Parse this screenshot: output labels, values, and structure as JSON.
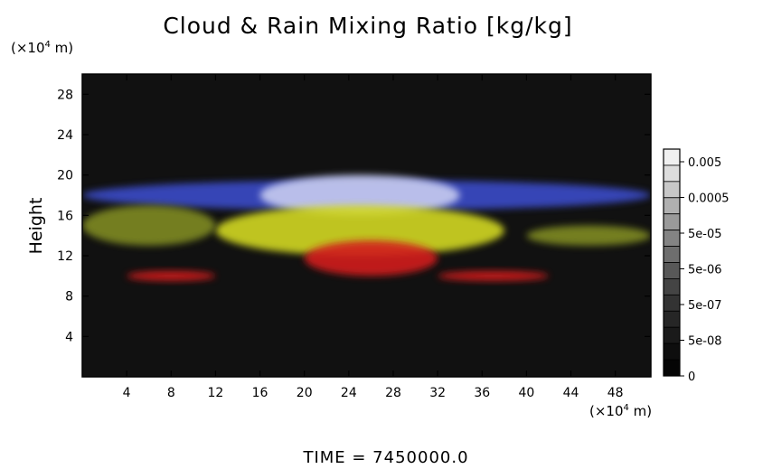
{
  "chart_data": {
    "type": "heatmap",
    "title": "Cloud & Rain Mixing Ratio [kg/kg]",
    "xlabel": "",
    "ylabel": "Height",
    "x_unit": {
      "prefix": "(×10",
      "exp": "4",
      "suffix": " m)"
    },
    "y_unit": {
      "prefix": "(×10",
      "exp": "4",
      "suffix": " m)"
    },
    "xlim": [
      0,
      51.2
    ],
    "ylim": [
      0,
      30
    ],
    "xticks": [
      4,
      8,
      12,
      16,
      20,
      24,
      28,
      32,
      36,
      40,
      44,
      48
    ],
    "yticks": [
      4,
      8,
      12,
      16,
      20,
      24,
      28
    ],
    "colorbar": {
      "labels": [
        "0.005",
        "0.0005",
        "5e-05",
        "5e-06",
        "5e-07",
        "5e-08",
        "0"
      ],
      "levels": [
        "#f0f0f0",
        "#dddddd",
        "#c8c8c8",
        "#b0b0b0",
        "#9a9a9a",
        "#848484",
        "#6e6e6e",
        "#585858",
        "#444444",
        "#333333",
        "#262626",
        "#1a1a1a",
        "#0e0e0e",
        "#050505"
      ]
    },
    "background_color": "#111111",
    "features": [
      {
        "type": "ice",
        "color": "#3a4cc8",
        "x": [
          0,
          51.2
        ],
        "y": [
          16.5,
          19.5
        ]
      },
      {
        "type": "snow",
        "color": "#c8ccf0",
        "x": [
          16,
          34
        ],
        "y": [
          16,
          20
        ]
      },
      {
        "type": "cloud",
        "color": "#d2d820",
        "x": [
          12,
          38
        ],
        "y": [
          12,
          17
        ]
      },
      {
        "type": "cloud",
        "color": "#7f8a22",
        "x": [
          0,
          12
        ],
        "y": [
          13,
          17
        ]
      },
      {
        "type": "cloud",
        "color": "#7f8a22",
        "x": [
          40,
          51.2
        ],
        "y": [
          13,
          15
        ]
      },
      {
        "type": "rain",
        "color": "#d21a1a",
        "x": [
          20,
          32
        ],
        "y": [
          10,
          13.5
        ]
      },
      {
        "type": "rain",
        "color": "#d21a1a",
        "x": [
          4,
          12
        ],
        "y": [
          9.5,
          10.5
        ]
      },
      {
        "type": "rain",
        "color": "#d21a1a",
        "x": [
          32,
          42
        ],
        "y": [
          9.5,
          10.5
        ]
      }
    ]
  },
  "footer": "TIME =  7450000.0"
}
